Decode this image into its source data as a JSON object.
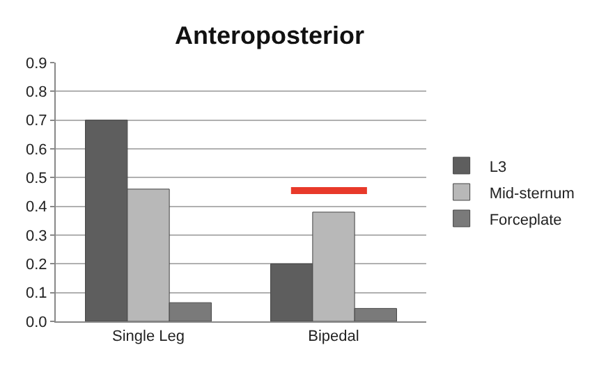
{
  "chart_data": {
    "type": "bar",
    "title": "Anteroposterior",
    "categories": [
      "Single Leg",
      "Bipedal"
    ],
    "series": [
      {
        "name": "L3",
        "color": "#5e5e5e",
        "values": [
          0.7,
          0.2
        ]
      },
      {
        "name": "Mid-sternum",
        "color": "#b8b8b8",
        "values": [
          0.46,
          0.38
        ]
      },
      {
        "name": "Forceplate",
        "color": "#7a7a7a",
        "values": [
          0.065,
          0.045
        ]
      }
    ],
    "ylim": [
      0,
      0.9
    ],
    "yticks": [
      {
        "value": 0,
        "label": "0.0"
      },
      0.1,
      0.2,
      0.3,
      0.4,
      0.5,
      0.6,
      0.7,
      0.8,
      0.9
    ],
    "ref_lines": [
      {
        "axis": "y",
        "value": 0.455,
        "color": "#e8392a"
      }
    ],
    "grid": "y",
    "legend": "right"
  }
}
